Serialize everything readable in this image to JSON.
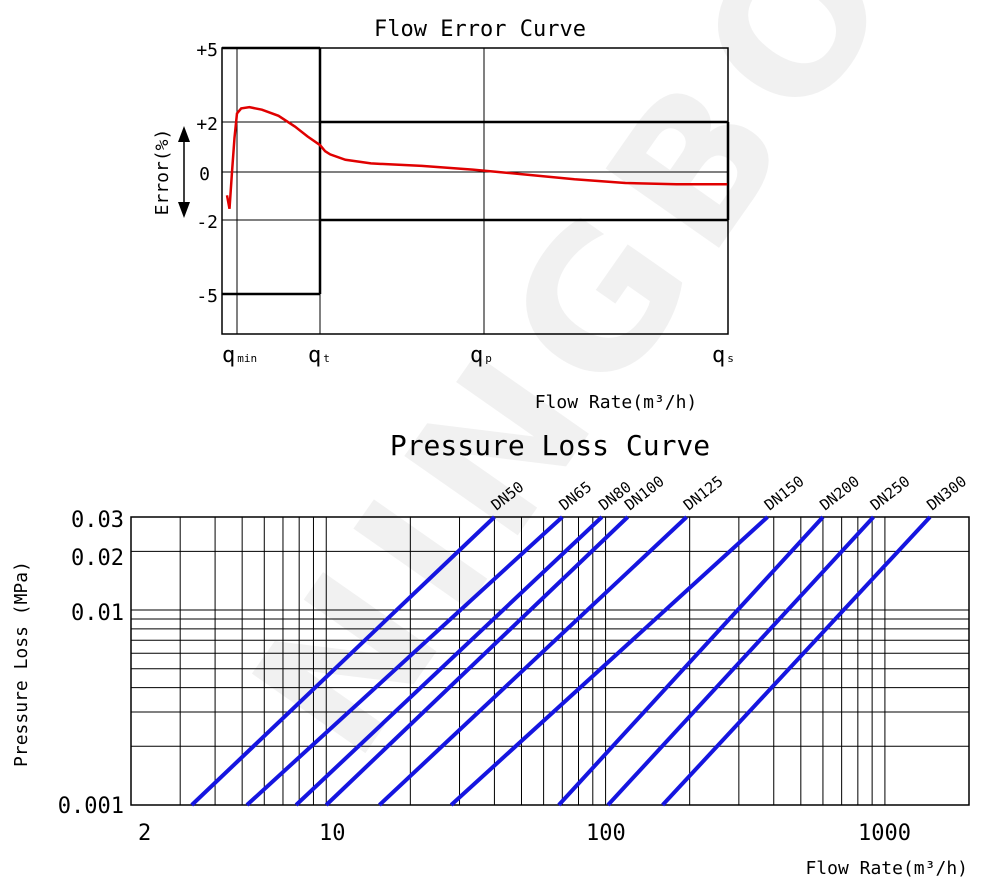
{
  "watermark": "NINGBO ",
  "chart_data": [
    {
      "type": "line",
      "title": "Flow Error Curve",
      "ylabel": "Error(%)",
      "xlabel": "Flow Rate(m³/h)",
      "y_ticks": [
        "+5",
        "+2",
        "0",
        "-2",
        "-5"
      ],
      "x_ticks": [
        {
          "base": "q",
          "sub": "min"
        },
        {
          "base": "q",
          "sub": "t"
        },
        {
          "base": "q",
          "sub": "p"
        },
        {
          "base": "q",
          "sub": "s"
        }
      ],
      "ylim": [
        -6.5,
        5
      ],
      "mpe_low_range": [
        -5,
        5
      ],
      "mpe_high_range": [
        -2,
        2
      ],
      "series": [
        {
          "color": "#e00000",
          "points": [
            [
              -0.2,
              -3.0
            ],
            [
              -0.15,
              -1.5
            ],
            [
              -0.1,
              0.0
            ],
            [
              -0.05,
              1.4
            ],
            [
              0.0,
              2.35
            ],
            [
              0.05,
              2.55
            ],
            [
              0.15,
              2.6
            ],
            [
              0.3,
              2.5
            ],
            [
              0.5,
              2.25
            ],
            [
              0.7,
              1.85
            ],
            [
              0.85,
              1.45
            ],
            [
              1.0,
              1.1
            ],
            [
              1.1,
              0.85
            ],
            [
              1.2,
              0.72
            ],
            [
              1.5,
              0.5
            ],
            [
              2.0,
              0.35
            ],
            [
              3.0,
              0.25
            ],
            [
              4.0,
              0.1
            ],
            [
              5.0,
              -0.1
            ],
            [
              6.0,
              -0.3
            ],
            [
              7.0,
              -0.45
            ],
            [
              8.0,
              -0.5
            ],
            [
              9.0,
              -0.5
            ]
          ]
        }
      ]
    },
    {
      "type": "line",
      "title": "Pressure Loss Curve",
      "ylabel": "Pressure Loss (MPa)",
      "xlabel": "Flow Rate(m³/h)",
      "x_scale": "log",
      "y_scale": "log",
      "xlim": [
        2,
        2000
      ],
      "ylim": [
        0.001,
        0.03
      ],
      "x_ticks": [
        {
          "value": 2,
          "label": "2"
        },
        {
          "value": 10,
          "label": "10"
        },
        {
          "value": 100,
          "label": "100"
        },
        {
          "value": 1000,
          "label": "1000"
        }
      ],
      "y_ticks": [
        {
          "value": 0.03,
          "label": "0.03"
        },
        {
          "value": 0.02,
          "label": "0.02"
        },
        {
          "value": 0.01,
          "label": "0.01"
        },
        {
          "value": 0.001,
          "label": "0.001"
        }
      ],
      "grid": true,
      "series": [
        {
          "name": "DN50",
          "x": [
            3.3,
            40
          ],
          "y": [
            0.001,
            0.03
          ]
        },
        {
          "name": "DN65",
          "x": [
            5.2,
            70
          ],
          "y": [
            0.001,
            0.03
          ]
        },
        {
          "name": "DN80",
          "x": [
            7.8,
            97
          ],
          "y": [
            0.001,
            0.03
          ]
        },
        {
          "name": "DN100",
          "x": [
            10,
            120
          ],
          "y": [
            0.001,
            0.03
          ]
        },
        {
          "name": "DN125",
          "x": [
            15.5,
            195
          ],
          "y": [
            0.001,
            0.03
          ]
        },
        {
          "name": "DN150",
          "x": [
            28,
            380
          ],
          "y": [
            0.001,
            0.03
          ]
        },
        {
          "name": "DN200",
          "x": [
            68,
            600
          ],
          "y": [
            0.001,
            0.03
          ]
        },
        {
          "name": "DN250",
          "x": [
            102,
            910
          ],
          "y": [
            0.001,
            0.03
          ]
        },
        {
          "name": "DN300",
          "x": [
            160,
            1450
          ],
          "y": [
            0.001,
            0.03
          ]
        }
      ]
    }
  ]
}
